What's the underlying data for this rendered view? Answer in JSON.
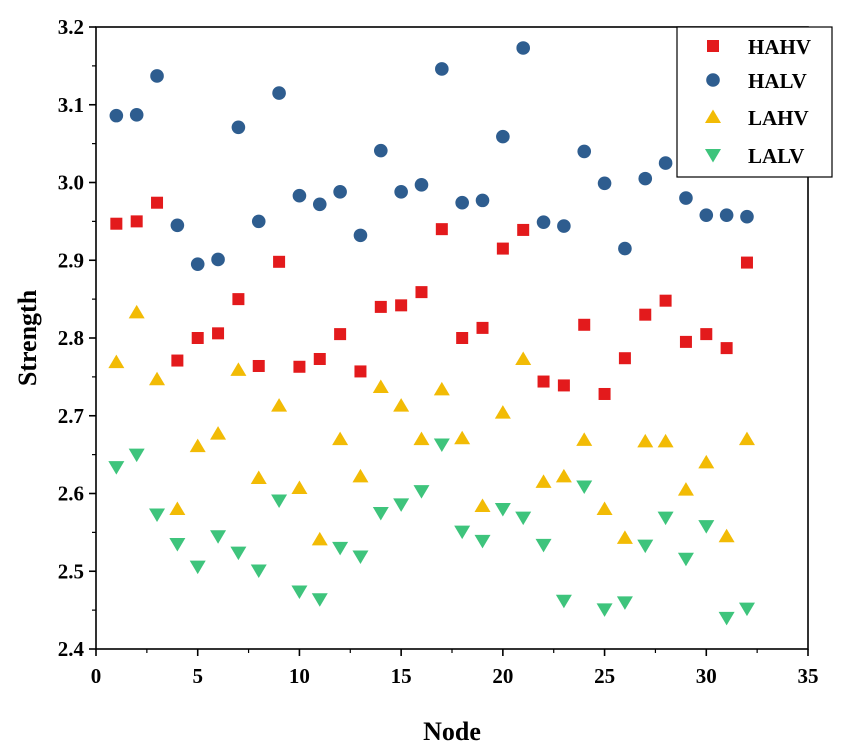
{
  "chart_data": {
    "type": "scatter",
    "title": "",
    "xlabel": "Node",
    "ylabel": "Strength",
    "xlim": [
      0,
      35
    ],
    "ylim": [
      2.4,
      3.2
    ],
    "xticks": [
      "0",
      "5",
      "10",
      "15",
      "20",
      "25",
      "30",
      "35"
    ],
    "yticks": [
      "2.4",
      "2.5",
      "2.6",
      "2.7",
      "2.8",
      "2.9",
      "3.0",
      "3.1",
      "3.2"
    ],
    "grid": false,
    "legend_position": "top-right",
    "x": [
      1,
      2,
      3,
      4,
      5,
      6,
      7,
      8,
      9,
      10,
      11,
      12,
      13,
      14,
      15,
      16,
      17,
      18,
      19,
      20,
      21,
      22,
      23,
      24,
      25,
      26,
      27,
      28,
      29,
      30,
      31,
      32
    ],
    "series": [
      {
        "name": "HAHV",
        "marker": "square",
        "color": "#e31a1c",
        "values": [
          2.947,
          2.95,
          2.974,
          2.771,
          2.8,
          2.806,
          2.85,
          2.764,
          2.898,
          2.763,
          2.773,
          2.805,
          2.757,
          2.84,
          2.842,
          2.859,
          2.94,
          2.8,
          2.813,
          2.915,
          2.939,
          2.744,
          2.739,
          2.817,
          2.728,
          2.774,
          2.83,
          2.848,
          2.795,
          2.805,
          2.787,
          2.897
        ]
      },
      {
        "name": "HALV",
        "marker": "circle",
        "color": "#2e5d8f",
        "values": [
          3.086,
          3.087,
          3.137,
          2.945,
          2.895,
          2.901,
          3.071,
          2.95,
          3.115,
          2.983,
          2.972,
          2.988,
          2.932,
          3.041,
          2.988,
          2.997,
          3.146,
          2.974,
          2.977,
          3.059,
          3.173,
          2.949,
          2.944,
          3.04,
          2.999,
          2.915,
          3.005,
          3.025,
          2.98,
          2.958,
          2.958,
          2.956
        ]
      },
      {
        "name": "LAHV",
        "marker": "triangle-up",
        "color": "#f2bb05",
        "values": [
          2.769,
          2.833,
          2.747,
          2.58,
          2.661,
          2.677,
          2.759,
          2.62,
          2.713,
          2.607,
          2.541,
          2.67,
          2.622,
          2.737,
          2.713,
          2.67,
          2.734,
          2.671,
          2.584,
          2.704,
          2.773,
          2.615,
          2.622,
          2.669,
          2.58,
          2.543,
          2.667,
          2.667,
          2.605,
          2.64,
          2.545,
          2.67
        ]
      },
      {
        "name": "LALV",
        "marker": "triangle-down",
        "color": "#3ec47c",
        "values": [
          2.634,
          2.65,
          2.573,
          2.535,
          2.506,
          2.545,
          2.524,
          2.501,
          2.591,
          2.474,
          2.464,
          2.53,
          2.519,
          2.575,
          2.586,
          2.603,
          2.663,
          2.551,
          2.539,
          2.58,
          2.569,
          2.534,
          2.462,
          2.609,
          2.451,
          2.46,
          2.533,
          2.569,
          2.516,
          2.558,
          2.44,
          2.452
        ]
      }
    ]
  }
}
